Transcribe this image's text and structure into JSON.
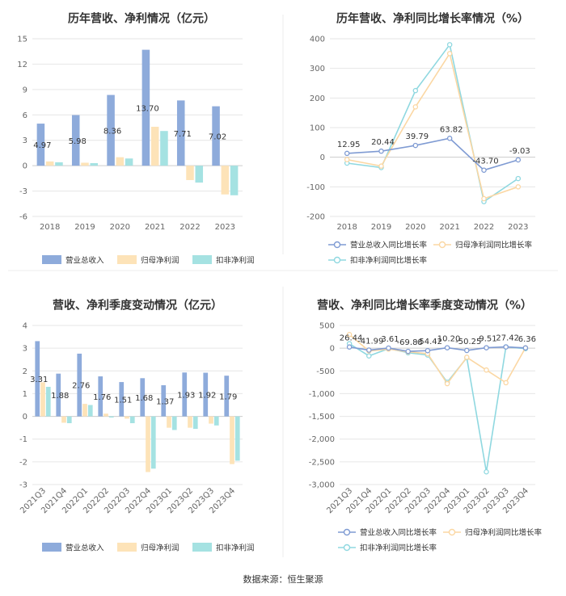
{
  "colors": {
    "revenue": "#8eabdb",
    "parent_profit": "#fde3b8",
    "deducted_profit": "#a5e2e2",
    "line_revenue": "#7f9bd3",
    "line_parent": "#fbd7a3",
    "line_deducted": "#8fd8e0"
  },
  "source": "数据来源：恒生聚源",
  "chart_data": [
    {
      "type": "bar",
      "title": "历年营收、净利情况（亿元）",
      "categories": [
        "2018",
        "2019",
        "2020",
        "2021",
        "2022",
        "2023"
      ],
      "ylim": [
        -6,
        15
      ],
      "yticks": [
        -6,
        -3,
        0,
        3,
        6,
        9,
        12,
        15
      ],
      "series": [
        {
          "name": "营业总收入",
          "values": [
            4.97,
            5.98,
            8.36,
            13.7,
            7.71,
            7.02
          ],
          "labels": [
            "4.97",
            "5.98",
            "8.36",
            "13.70",
            "7.71",
            "7.02"
          ]
        },
        {
          "name": "归母净利润",
          "values": [
            0.5,
            0.35,
            1.0,
            4.6,
            -1.7,
            -3.4
          ]
        },
        {
          "name": "扣非净利润",
          "values": [
            0.4,
            0.3,
            0.85,
            4.1,
            -2.0,
            -3.5
          ]
        }
      ]
    },
    {
      "type": "line",
      "title": "历年营收、净利同比增长率情况（%）",
      "categories": [
        "2018",
        "2019",
        "2020",
        "2021",
        "2022",
        "2023"
      ],
      "ylim": [
        -200,
        400
      ],
      "yticks": [
        -200,
        -100,
        0,
        100,
        200,
        300,
        400
      ],
      "series": [
        {
          "name": "营业总收入同比增长率",
          "values": [
            12.95,
            20.44,
            39.79,
            63.82,
            -43.7,
            -9.03
          ],
          "labels": [
            "12.95",
            "20.44",
            "39.79",
            "63.82",
            "-43.70",
            "-9.03"
          ]
        },
        {
          "name": "归母净利润同比增长率",
          "values": [
            -8,
            -30,
            170,
            350,
            -140,
            -100
          ]
        },
        {
          "name": "扣非净利润同比增长率",
          "values": [
            -20,
            -35,
            225,
            380,
            -150,
            -72
          ]
        }
      ]
    },
    {
      "type": "bar",
      "title": "营收、净利季度变动情况（亿元）",
      "categories": [
        "2021Q3",
        "2021Q4",
        "2022Q1",
        "2022Q2",
        "2022Q3",
        "2022Q4",
        "2023Q1",
        "2023Q2",
        "2023Q3",
        "2023Q4"
      ],
      "ylim": [
        -3,
        4
      ],
      "yticks": [
        -3,
        -2,
        -1,
        0,
        1,
        2,
        3,
        4
      ],
      "series": [
        {
          "name": "营业总收入",
          "values": [
            3.31,
            1.88,
            2.76,
            1.76,
            1.51,
            1.68,
            1.37,
            1.93,
            1.92,
            1.79
          ],
          "labels": [
            "3.31",
            "1.88",
            "2.76",
            "1.76",
            "1.51",
            "1.68",
            "1.37",
            "1.93",
            "1.92",
            "1.79"
          ]
        },
        {
          "name": "归母净利润",
          "values": [
            1.5,
            -0.28,
            0.55,
            0.12,
            -0.1,
            -2.45,
            -0.5,
            -0.5,
            -0.32,
            -2.1
          ]
        },
        {
          "name": "扣非净利润",
          "values": [
            1.3,
            -0.3,
            0.5,
            -0.05,
            -0.3,
            -2.3,
            -0.6,
            -0.55,
            -0.4,
            -1.95
          ]
        }
      ]
    },
    {
      "type": "line",
      "title": "营收、净利同比增长率季度变动情况（%）",
      "categories": [
        "2021Q3",
        "2021Q4",
        "2022Q1",
        "2022Q2",
        "2022Q3",
        "2022Q4",
        "2023Q1",
        "2023Q2",
        "2023Q3",
        "2023Q4"
      ],
      "ylim": [
        -3000,
        500
      ],
      "yticks": [
        -3000,
        -2500,
        -2000,
        -1500,
        -1000,
        -500,
        0,
        500
      ],
      "ytick_labels": [
        "-3,000",
        "-2,500",
        "-2,000",
        "-1,500",
        "-1,000",
        "-500",
        "0",
        "500"
      ],
      "series": [
        {
          "name": "营业总收入同比增长率",
          "values": [
            26.44,
            -41.99,
            3.61,
            -69.88,
            -54.42,
            10.2,
            -50.25,
            9.51,
            27.42,
            6.36
          ],
          "labels": [
            "26.44",
            "-41.99",
            "3.61",
            "-69.88",
            "-54.42",
            "10.20",
            "-50.25",
            "9.51",
            "27.42",
            "6.36"
          ]
        },
        {
          "name": "归母净利润同比增长率",
          "values": [
            300,
            -60,
            -20,
            -80,
            -120,
            -780,
            -200,
            -480,
            -760,
            10
          ]
        },
        {
          "name": "扣非净利润同比增长率",
          "values": [
            100,
            -170,
            -10,
            -100,
            -150,
            -750,
            -210,
            -2720,
            30,
            -10
          ]
        }
      ]
    }
  ]
}
